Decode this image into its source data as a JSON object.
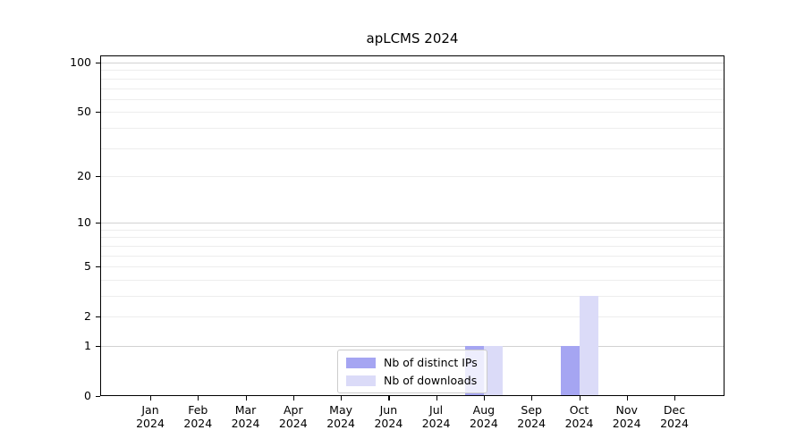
{
  "title": "apLCMS 2024",
  "chart_data": {
    "type": "bar",
    "title": "apLCMS 2024",
    "scale": "log1p",
    "categories": [
      {
        "month": "Jan",
        "year": "2024"
      },
      {
        "month": "Feb",
        "year": "2024"
      },
      {
        "month": "Mar",
        "year": "2024"
      },
      {
        "month": "Apr",
        "year": "2024"
      },
      {
        "month": "May",
        "year": "2024"
      },
      {
        "month": "Jun",
        "year": "2024"
      },
      {
        "month": "Jul",
        "year": "2024"
      },
      {
        "month": "Aug",
        "year": "2024"
      },
      {
        "month": "Sep",
        "year": "2024"
      },
      {
        "month": "Oct",
        "year": "2024"
      },
      {
        "month": "Nov",
        "year": "2024"
      },
      {
        "month": "Dec",
        "year": "2024"
      }
    ],
    "series": [
      {
        "name": "Nb of distinct IPs",
        "color": "#a5a5f2",
        "values": [
          0,
          0,
          0,
          0,
          0,
          0,
          0,
          1,
          0,
          1,
          0,
          0
        ]
      },
      {
        "name": "Nb of downloads",
        "color": "#dbdbf8",
        "values": [
          0,
          0,
          0,
          0,
          0,
          0,
          0,
          1,
          0,
          3,
          0,
          0
        ]
      }
    ],
    "y_tick_values": [
      0,
      1,
      2,
      5,
      10,
      20,
      50,
      100
    ],
    "major_grid_values": [
      1,
      10,
      100
    ],
    "minor_grid_values": [
      2,
      3,
      4,
      5,
      6,
      7,
      8,
      9,
      20,
      30,
      40,
      50,
      60,
      70,
      80,
      90
    ],
    "ylim": [
      0,
      110
    ],
    "grid": true,
    "legend_position": "lower center",
    "colors": {
      "major_grid": "#d2d2d2",
      "minor_grid": "#ededed",
      "axis": "#000000",
      "legend_border": "#cccccc"
    }
  }
}
